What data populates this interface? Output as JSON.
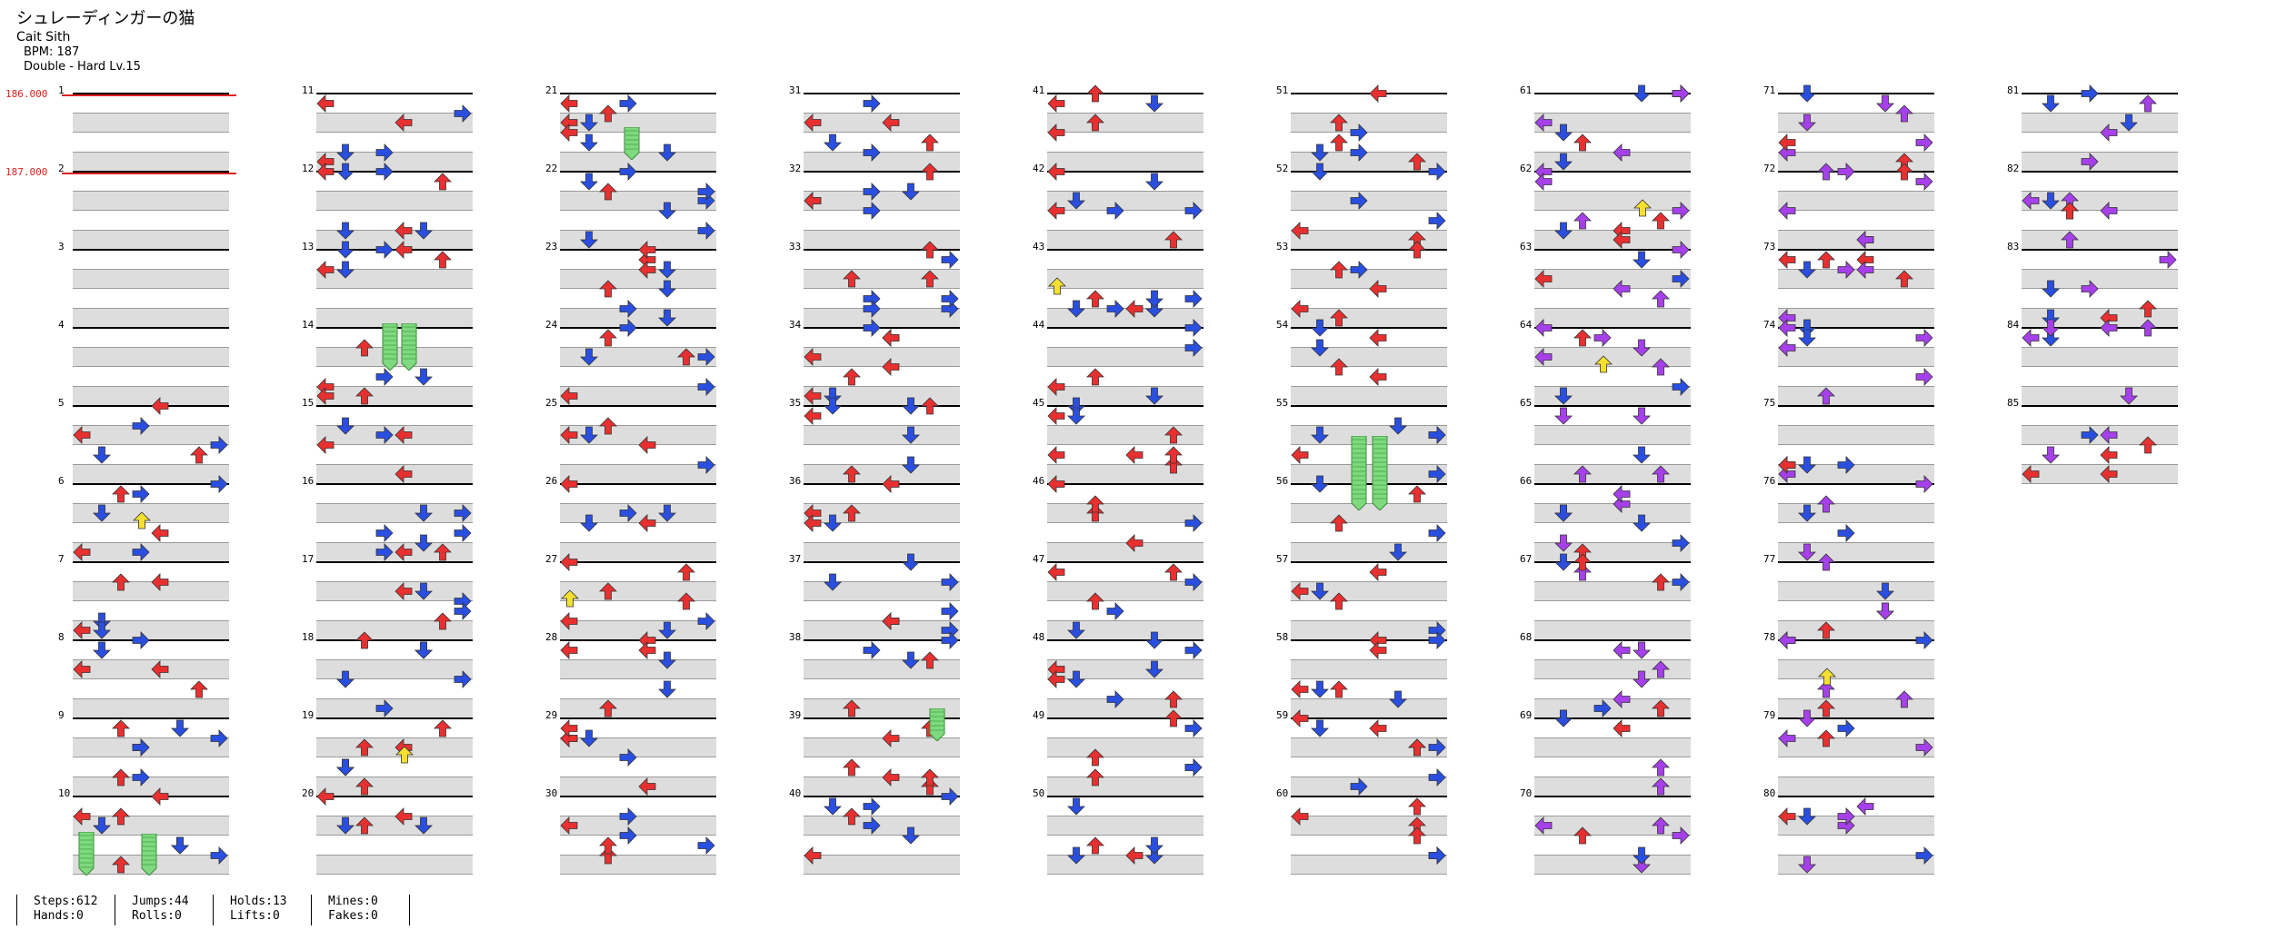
{
  "song": {
    "title": "シュレーディンガーの猫",
    "artist": "Cait Sith",
    "bpm_text": "BPM: 187",
    "difficulty_text": "Double - Hard  Lv.15"
  },
  "bpm_changes": [
    "186.000",
    "187.000"
  ],
  "columns": [
    {
      "measures": [
        "1",
        "2",
        "3",
        "4",
        "5",
        "6",
        "7",
        "8",
        "9",
        "10"
      ]
    },
    {
      "measures": [
        "11",
        "12",
        "13",
        "14",
        "15",
        "16",
        "17",
        "18",
        "19",
        "20"
      ]
    },
    {
      "measures": [
        "21",
        "22",
        "23",
        "24",
        "25",
        "26",
        "27",
        "28",
        "29",
        "30"
      ]
    },
    {
      "measures": [
        "31",
        "32",
        "33",
        "34",
        "35",
        "36",
        "37",
        "38",
        "39",
        "40"
      ]
    },
    {
      "measures": [
        "41",
        "42",
        "43",
        "44",
        "45",
        "46",
        "47",
        "48",
        "49",
        "50"
      ]
    },
    {
      "measures": [
        "51",
        "52",
        "53",
        "54",
        "55",
        "56",
        "57",
        "58",
        "59",
        "60"
      ]
    },
    {
      "measures": [
        "61",
        "62",
        "63",
        "64",
        "65",
        "66",
        "67",
        "68",
        "69",
        "70"
      ]
    },
    {
      "measures": [
        "71",
        "72",
        "73",
        "74",
        "75",
        "76",
        "77",
        "78",
        "79",
        "80"
      ]
    },
    {
      "measures": [
        "81",
        "82",
        "83",
        "84",
        "85"
      ]
    }
  ],
  "stats": {
    "steps": "Steps:612",
    "hands": "Hands:0",
    "jumps": "Jumps:44",
    "rolls": "Rolls:0",
    "holds": "Holds:13",
    "lifts": "Lifts:0",
    "mines": "Mines:0",
    "fakes": "Fakes:0"
  },
  "colors": {
    "red": "#e83030",
    "blue": "#2a4fe0",
    "purple": "#a640ea",
    "yellow": "#f5e030",
    "green": "#7fd97f",
    "bpm": "#e02020",
    "band": "#dddddd",
    "measure_line": "#000000"
  }
}
